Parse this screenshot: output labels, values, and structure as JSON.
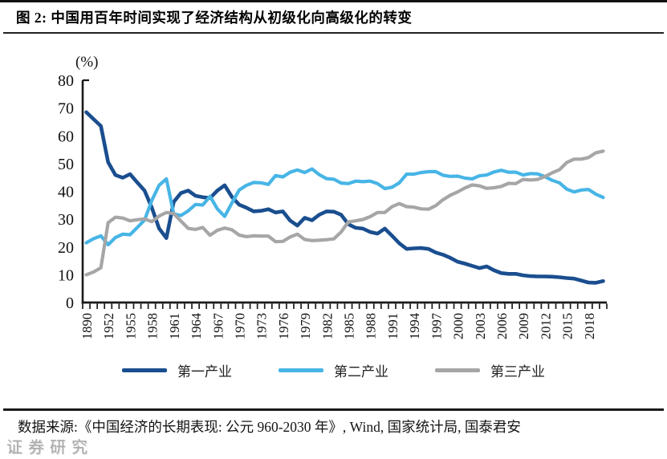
{
  "page": {
    "source_note": "数据来源:《中国经济的长期表现: 公元 960-2030 年》, Wind, 国家统计局, 国泰君安",
    "watermark": "证券研究"
  },
  "chart_data": {
    "type": "line",
    "title": "图 2: 中国用百年时间实现了经济结构从初级化向高级化的转变",
    "ylabel": "(%)",
    "xlabel": "",
    "ylim": [
      0,
      80
    ],
    "yticks": [
      0,
      10,
      20,
      30,
      40,
      50,
      60,
      70,
      80
    ],
    "grid": false,
    "legend_position": "bottom",
    "xtick_label_every": 3,
    "categories": [
      "1890",
      "1913",
      "1933",
      "1952",
      "1953",
      "1954",
      "1955",
      "1956",
      "1957",
      "1958",
      "1959",
      "1960",
      "1961",
      "1962",
      "1963",
      "1964",
      "1965",
      "1966",
      "1967",
      "1968",
      "1969",
      "1970",
      "1971",
      "1972",
      "1973",
      "1974",
      "1975",
      "1976",
      "1977",
      "1978",
      "1979",
      "1980",
      "1981",
      "1982",
      "1983",
      "1984",
      "1985",
      "1986",
      "1987",
      "1988",
      "1989",
      "1990",
      "1991",
      "1992",
      "1993",
      "1994",
      "1995",
      "1996",
      "1997",
      "1998",
      "1999",
      "2000",
      "2001",
      "2002",
      "2003",
      "2004",
      "2005",
      "2006",
      "2007",
      "2008",
      "2009",
      "2010",
      "2011",
      "2012",
      "2013",
      "2014",
      "2015",
      "2016",
      "2017",
      "2018",
      "2019",
      "2020"
    ],
    "series": [
      {
        "id": "primary-industry",
        "name": "第一产业",
        "color": "#1a4e8f",
        "stroke_width": 4.6,
        "values": [
          68.5,
          66.0,
          63.5,
          50.5,
          45.9,
          44.9,
          46.2,
          43.2,
          40.3,
          34.1,
          26.7,
          23.2,
          36.2,
          39.4,
          40.3,
          38.4,
          37.9,
          37.6,
          40.3,
          42.2,
          38.0,
          35.2,
          34.1,
          32.8,
          33.0,
          33.6,
          32.4,
          32.8,
          29.5,
          27.7,
          30.5,
          29.6,
          31.6,
          32.8,
          32.7,
          31.6,
          28.2,
          26.9,
          26.6,
          25.4,
          24.8,
          26.6,
          24.0,
          21.3,
          19.3,
          19.5,
          19.6,
          19.3,
          18.0,
          17.2,
          16.1,
          14.7,
          14.0,
          13.2,
          12.4,
          13.0,
          11.6,
          10.6,
          10.3,
          10.3,
          9.8,
          9.5,
          9.4,
          9.4,
          9.3,
          9.1,
          8.8,
          8.6,
          7.9,
          7.2,
          7.1,
          7.7
        ]
      },
      {
        "id": "secondary-industry",
        "name": "第二产业",
        "color": "#47b5e6",
        "stroke_width": 4.2,
        "values": [
          21.5,
          23.0,
          24.0,
          20.8,
          23.4,
          24.6,
          24.4,
          27.0,
          29.7,
          36.8,
          42.2,
          44.5,
          31.9,
          31.3,
          33.0,
          35.3,
          35.1,
          38.2,
          33.7,
          31.0,
          35.8,
          40.5,
          42.2,
          43.2,
          43.1,
          42.5,
          45.7,
          45.2,
          46.9,
          47.7,
          46.8,
          48.1,
          46.0,
          44.6,
          44.4,
          43.0,
          42.8,
          43.7,
          43.5,
          43.7,
          42.8,
          41.0,
          41.5,
          43.1,
          46.2,
          46.2,
          46.8,
          47.1,
          47.1,
          45.8,
          45.4,
          45.5,
          44.8,
          44.5,
          45.6,
          45.9,
          47.0,
          47.6,
          46.9,
          46.9,
          45.9,
          46.4,
          46.3,
          45.3,
          44.0,
          43.1,
          40.8,
          39.8,
          40.5,
          40.7,
          39.0,
          37.8
        ]
      },
      {
        "id": "tertiary-industry",
        "name": "第三产业",
        "color": "#a6a6a6",
        "stroke_width": 4.2,
        "values": [
          10.0,
          11.0,
          12.5,
          28.7,
          30.7,
          30.4,
          29.4,
          29.8,
          30.1,
          29.1,
          31.1,
          32.4,
          32.0,
          29.3,
          26.7,
          26.3,
          27.0,
          24.2,
          26.0,
          26.8,
          26.2,
          24.3,
          23.7,
          24.0,
          23.9,
          23.9,
          21.9,
          22.0,
          23.6,
          24.6,
          22.7,
          22.3,
          22.4,
          22.6,
          22.9,
          25.4,
          29.0,
          29.4,
          29.9,
          30.9,
          32.4,
          32.4,
          34.5,
          35.6,
          34.5,
          34.3,
          33.7,
          33.6,
          34.9,
          37.0,
          38.6,
          39.8,
          41.2,
          42.3,
          42.0,
          41.1,
          41.3,
          41.8,
          42.9,
          42.8,
          44.3,
          44.1,
          44.3,
          45.3,
          46.7,
          47.8,
          50.4,
          51.6,
          51.6,
          52.2,
          53.9,
          54.5
        ]
      }
    ]
  }
}
